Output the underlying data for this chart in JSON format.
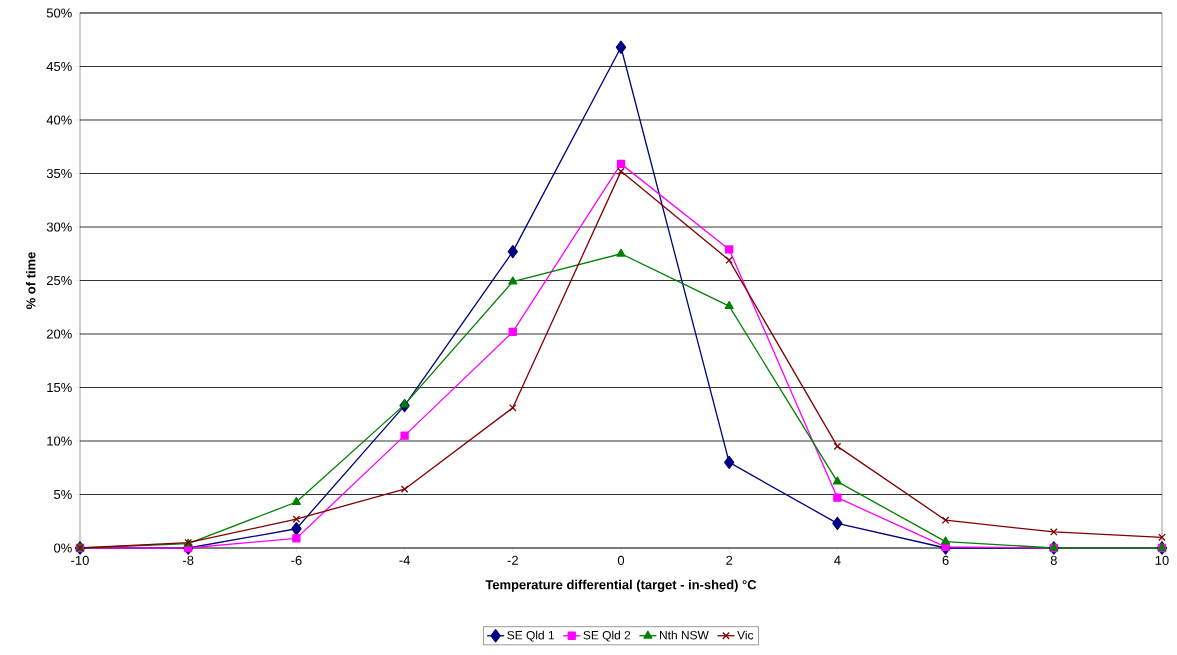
{
  "chart_data": {
    "type": "line",
    "xlabel": "Temperature differential (target - in-shed) °C",
    "ylabel": "% of time",
    "x": [
      -10,
      -8,
      -6,
      -4,
      -2,
      0,
      2,
      4,
      6,
      8,
      10
    ],
    "series": [
      {
        "name": "SE Qld 1",
        "color": "#000080",
        "marker": "diamond",
        "values": [
          0,
          0,
          1.8,
          13.3,
          27.7,
          46.8,
          8.0,
          2.3,
          0,
          0,
          0
        ]
      },
      {
        "name": "SE Qld 2",
        "color": "#ff00ff",
        "marker": "square",
        "values": [
          0,
          0,
          0.9,
          10.5,
          20.2,
          35.9,
          27.9,
          4.7,
          0.1,
          0,
          0
        ]
      },
      {
        "name": "Nth NSW",
        "color": "#008000",
        "marker": "triangle",
        "values": [
          0,
          0.4,
          4.3,
          13.4,
          24.9,
          27.5,
          22.6,
          6.2,
          0.6,
          0,
          0
        ]
      },
      {
        "name": "Vic",
        "color": "#800000",
        "marker": "cross",
        "values": [
          0,
          0.5,
          2.7,
          5.5,
          13.1,
          35.2,
          26.9,
          9.5,
          2.6,
          1.5,
          1.0
        ]
      }
    ],
    "xlim": [
      -10,
      10
    ],
    "xticks": [
      -10,
      -8,
      -6,
      -4,
      -2,
      0,
      2,
      4,
      6,
      8,
      10
    ],
    "ylim": [
      0,
      50
    ],
    "yticks": [
      {
        "value": 0,
        "label": "0%"
      },
      {
        "value": 5,
        "label": "5%"
      },
      {
        "value": 10,
        "label": "10%"
      },
      {
        "value": 15,
        "label": "15%"
      },
      {
        "value": 20,
        "label": "20%"
      },
      {
        "value": 25,
        "label": "25%"
      },
      {
        "value": 30,
        "label": "30%"
      },
      {
        "value": 35,
        "label": "35%"
      },
      {
        "value": 40,
        "label": "40%"
      },
      {
        "value": 45,
        "label": "45%"
      },
      {
        "value": 50,
        "label": "50%"
      }
    ],
    "grid": "y",
    "legend": "bottom",
    "line_style": "solid"
  }
}
